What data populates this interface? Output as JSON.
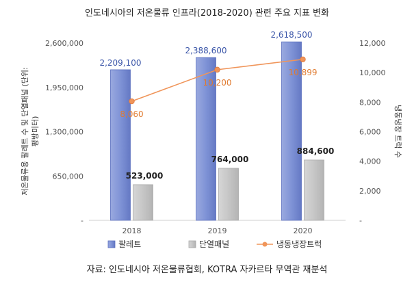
{
  "chart_data": {
    "type": "bar",
    "title": "인도네시아의 저온물류 인프라(2018-2020) 관련 주요 지표 변화",
    "categories": [
      "2018",
      "2019",
      "2020"
    ],
    "series": [
      {
        "name": "팔레트",
        "axis": "left",
        "kind": "bar",
        "color": "#8497d6",
        "values": [
          2209100,
          2388600,
          2618500
        ],
        "labels": [
          "2,209,100",
          "2,388,600",
          "2,618,500"
        ]
      },
      {
        "name": "단열패널",
        "axis": "left",
        "kind": "bar",
        "color": "#c9c9c9",
        "values": [
          523000,
          764000,
          884600
        ],
        "labels": [
          "523,000",
          "764,000",
          "884,600"
        ]
      },
      {
        "name": "냉동냉장트럭",
        "axis": "right",
        "kind": "line",
        "color": "#f0955a",
        "values": [
          8060,
          10200,
          10899
        ],
        "labels": [
          "8,060",
          "10,200",
          "10,899"
        ]
      }
    ],
    "left_axis": {
      "label_line1": "저온물류용 팔레트 수 및 단열패널 (단위:",
      "label_line2": "평방미터)",
      "ylim": [
        0,
        2600000
      ],
      "ticks": [
        0,
        650000,
        1300000,
        1950000,
        2600000
      ],
      "tick_labels": [
        "-",
        "650,000",
        "1,300,000",
        "1,950,000",
        "2,600,000"
      ]
    },
    "right_axis": {
      "label": "냉동냉장 트럭 수",
      "ylim": [
        0,
        12000
      ],
      "ticks": [
        0,
        2000,
        4000,
        6000,
        8000,
        10000,
        12000
      ],
      "tick_labels": [
        "-",
        "2,000",
        "4,000",
        "6,000",
        "8,000",
        "10,000",
        "12,000"
      ]
    },
    "legend": [
      "팔레트",
      "단열패널",
      "냉동냉장트럭"
    ],
    "legend_position": "bottom",
    "grid": false
  },
  "source_note": "자료: 인도네시아 저온물류협회, KOTRA 자카르타 무역관 재분석"
}
